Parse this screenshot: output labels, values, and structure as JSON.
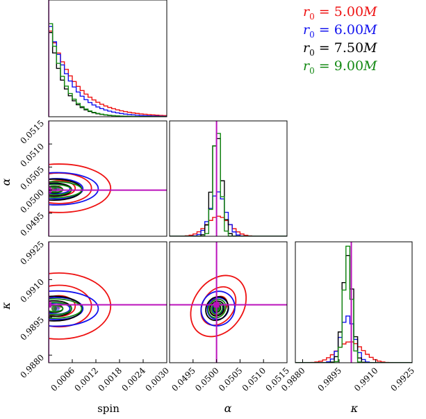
{
  "chart_data": {
    "type": "corner",
    "parameters": [
      {
        "label": "spin",
        "range": [
          0.0,
          0.003
        ],
        "ticks": [
          "0.0006",
          "0.0012",
          "0.0018",
          "0.0024",
          "0.0030"
        ],
        "tick_values": [
          0.0006,
          0.0012,
          0.0018,
          0.0024,
          0.003
        ],
        "truth": 0.0
      },
      {
        "label": "α",
        "range": [
          0.049,
          0.0515
        ],
        "ticks": [
          "0.0495",
          "0.0500",
          "0.0505",
          "0.0510",
          "0.0515"
        ],
        "tick_values": [
          0.0495,
          0.05,
          0.0505,
          0.051,
          0.0515
        ],
        "truth": 0.05
      },
      {
        "label": "κ",
        "range": [
          0.9877,
          0.9925
        ],
        "ticks": [
          "0.9880",
          "0.9895",
          "0.9910",
          "0.9925"
        ],
        "tick_values": [
          0.988,
          0.9895,
          0.991,
          0.9925
        ],
        "truth": 0.99
      }
    ],
    "series": [
      {
        "name": "r0 = 5.00M",
        "color": "#ee1111",
        "center": [
          0.0002,
          0.05004,
          0.98995
        ],
        "sigma": [
          0.00075,
          0.0003,
          0.00075
        ],
        "corr_alpha_kappa": -0.6
      },
      {
        "name": "r0 = 6.00M",
        "color": "#1111ee",
        "center": [
          0.00018,
          0.05003,
          0.98985
        ],
        "sigma": [
          0.0006,
          0.0002,
          0.0004
        ],
        "corr_alpha_kappa": -0.55
      },
      {
        "name": "r0 = 7.50M",
        "color": "#000000",
        "center": [
          0.00012,
          0.05001,
          0.98985
        ],
        "sigma": [
          0.0004,
          0.00013,
          0.00028
        ],
        "corr_alpha_kappa": -0.5
      },
      {
        "name": "r0 = 9.00M",
        "color": "#118811",
        "center": [
          0.00012,
          0.05001,
          0.98985
        ],
        "sigma": [
          0.0004,
          0.0001,
          0.00022
        ],
        "corr_alpha_kappa": -0.5
      }
    ],
    "legend": {
      "position": "top-right"
    },
    "truth_color": "#bb11bb"
  },
  "legend": {
    "r0_500": {
      "r": "r",
      "sub": "0",
      "rest": " = 5.00",
      "m": "M"
    },
    "r0_600": {
      "r": "r",
      "sub": "0",
      "rest": " = 6.00",
      "m": "M"
    },
    "r0_750": {
      "r": "r",
      "sub": "0",
      "rest": " = 7.50",
      "m": "M"
    },
    "r0_900": {
      "r": "r",
      "sub": "0",
      "rest": " = 9.00",
      "m": "M"
    }
  }
}
